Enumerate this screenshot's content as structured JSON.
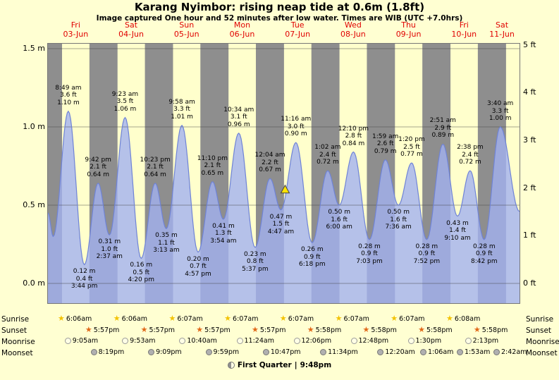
{
  "header": {
    "title": "Karang Nyimbor: rising  neap tide at 0.6m (1.8ft)",
    "subtitle": "Image captured One hour and 52 minutes after low water. Times are WIB (UTC +7.0hrs)"
  },
  "colors": {
    "background": "#ffffd2",
    "day_band": "#ffffcc",
    "night_band": "#8e8e8e",
    "tide_fill": "#a3b1f0",
    "tide_stroke": "#6f83d6",
    "day_label_red": "#e00000",
    "marker_fill": "#ffe400",
    "sunrise_star": "#f2c200",
    "sunset_star": "#e06818"
  },
  "chart_data": {
    "type": "area",
    "title": "Karang Nyimbor: rising  neap tide at 0.6m (1.8ft)",
    "x_unit": "hours from 03-Jun 00:00 WIB",
    "xlim_hours": [
      0,
      204
    ],
    "ylim_m": [
      0,
      1.5
    ],
    "ylim_ft": [
      0,
      5
    ],
    "grid": true,
    "days": [
      {
        "name": "Fri",
        "date": "03-Jun"
      },
      {
        "name": "Sat",
        "date": "04-Jun"
      },
      {
        "name": "Sun",
        "date": "05-Jun"
      },
      {
        "name": "Mon",
        "date": "06-Jun"
      },
      {
        "name": "Tue",
        "date": "07-Jun"
      },
      {
        "name": "Wed",
        "date": "08-Jun"
      },
      {
        "name": "Thu",
        "date": "09-Jun"
      },
      {
        "name": "Fri",
        "date": "10-Jun"
      },
      {
        "name": "Sat",
        "date": "11-Jun"
      }
    ],
    "y_axis": {
      "meters": [
        {
          "label": "0.0 m",
          "value": 0
        },
        {
          "label": "0.5 m",
          "value": 0.5
        },
        {
          "label": "1.0 m",
          "value": 1
        },
        {
          "label": "1.5 m",
          "value": 1.5
        }
      ],
      "feet": [
        {
          "label": "0 ft",
          "value": 0
        },
        {
          "label": "1 ft",
          "value": 1
        },
        {
          "label": "2 ft",
          "value": 2
        },
        {
          "label": "3 ft",
          "value": 3
        },
        {
          "label": "4 ft",
          "value": 4
        },
        {
          "label": "5 ft",
          "value": 5
        }
      ]
    },
    "tide_events": [
      {
        "day": 0,
        "type": "high",
        "time": "8:49 am",
        "height_ft": "3.6 ft",
        "height_m": "1.10 m"
      },
      {
        "day": 0,
        "type": "low",
        "time": "3:44 pm",
        "height_ft": "0.4 ft",
        "height_m": "0.12 m"
      },
      {
        "day": 0,
        "type": "high",
        "time": "9:42 pm",
        "height_ft": "2.1 ft",
        "height_m": "0.64 m"
      },
      {
        "day": 1,
        "type": "low",
        "time": "2:37 am",
        "height_ft": "1.0 ft",
        "height_m": "0.31 m"
      },
      {
        "day": 1,
        "type": "high",
        "time": "9:23 am",
        "height_ft": "3.5 ft",
        "height_m": "1.06 m"
      },
      {
        "day": 1,
        "type": "low",
        "time": "4:20 pm",
        "height_ft": "0.5 ft",
        "height_m": "0.16 m"
      },
      {
        "day": 1,
        "type": "high",
        "time": "10:23 pm",
        "height_ft": "2.1 ft",
        "height_m": "0.64 m"
      },
      {
        "day": 2,
        "type": "low",
        "time": "3:13 am",
        "height_ft": "1.1 ft",
        "height_m": "0.35 m"
      },
      {
        "day": 2,
        "type": "high",
        "time": "9:58 am",
        "height_ft": "3.3 ft",
        "height_m": "1.01 m"
      },
      {
        "day": 2,
        "type": "low",
        "time": "4:57 pm",
        "height_ft": "0.7 ft",
        "height_m": "0.20 m"
      },
      {
        "day": 2,
        "type": "high",
        "time": "11:10 pm",
        "height_ft": "2.1 ft",
        "height_m": "0.65 m"
      },
      {
        "day": 3,
        "type": "low",
        "time": "3:54 am",
        "height_ft": "1.3 ft",
        "height_m": "0.41 m"
      },
      {
        "day": 3,
        "type": "high",
        "time": "10:34 am",
        "height_ft": "3.1 ft",
        "height_m": "0.96 m"
      },
      {
        "day": 3,
        "type": "low",
        "time": "5:37 pm",
        "height_ft": "0.8 ft",
        "height_m": "0.23 m"
      },
      {
        "day": 4,
        "type": "high",
        "time": "12:04 am",
        "height_ft": "2.2 ft",
        "height_m": "0.67 m"
      },
      {
        "day": 4,
        "type": "low",
        "time": "4:47 am",
        "height_ft": "1.5 ft",
        "height_m": "0.47 m"
      },
      {
        "day": 4,
        "type": "high",
        "time": "11:16 am",
        "height_ft": "3.0 ft",
        "height_m": "0.90 m"
      },
      {
        "day": 4,
        "type": "low",
        "time": "6:18 pm",
        "height_ft": "0.9 ft",
        "height_m": "0.26 m"
      },
      {
        "day": 5,
        "type": "high",
        "time": "1:02 am",
        "height_ft": "2.4 ft",
        "height_m": "0.72 m"
      },
      {
        "day": 5,
        "type": "low",
        "time": "6:00 am",
        "height_ft": "1.6 ft",
        "height_m": "0.50 m"
      },
      {
        "day": 5,
        "type": "high",
        "time": "12:10 pm",
        "height_ft": "2.8 ft",
        "height_m": "0.84 m"
      },
      {
        "day": 5,
        "type": "low",
        "time": "7:03 pm",
        "height_ft": "0.9 ft",
        "height_m": "0.28 m"
      },
      {
        "day": 6,
        "type": "high",
        "time": "1:59 am",
        "height_ft": "2.6 ft",
        "height_m": "0.79 m"
      },
      {
        "day": 6,
        "type": "low",
        "time": "7:36 am",
        "height_ft": "1.6 ft",
        "height_m": "0.50 m"
      },
      {
        "day": 6,
        "type": "high",
        "time": "1:20 pm",
        "height_ft": "2.5 ft",
        "height_m": "0.77 m"
      },
      {
        "day": 6,
        "type": "low",
        "time": "7:52 pm",
        "height_ft": "0.9 ft",
        "height_m": "0.28 m"
      },
      {
        "day": 7,
        "type": "high",
        "time": "2:51 am",
        "height_ft": "2.9 ft",
        "height_m": "0.89 m"
      },
      {
        "day": 7,
        "type": "low",
        "time": "9:10 am",
        "height_ft": "1.4 ft",
        "height_m": "0.43 m"
      },
      {
        "day": 7,
        "type": "high",
        "time": "2:38 pm",
        "height_ft": "2.4 ft",
        "height_m": "0.72 m"
      },
      {
        "day": 7,
        "type": "low",
        "time": "8:42 pm",
        "height_ft": "0.9 ft",
        "height_m": "0.28 m"
      },
      {
        "day": 8,
        "type": "high",
        "time": "3:40 am",
        "height_ft": "3.3 ft",
        "height_m": "1.00 m"
      }
    ],
    "curve_edge_points": {
      "start": [
        {
          "t": 0,
          "m": 0.45
        },
        {
          "t": 2.3,
          "m": 0.3
        }
      ],
      "end": [
        {
          "t": 204,
          "m": 0.46
        }
      ]
    },
    "current_time_marker": {
      "t_hours": 102.6,
      "height_m": 0.6
    }
  },
  "astronomy": {
    "sunrise": {
      "label": "Sunrise",
      "events": [
        {
          "day": 0,
          "time": "6:06am"
        },
        {
          "day": 1,
          "time": "6:06am"
        },
        {
          "day": 2,
          "time": "6:07am"
        },
        {
          "day": 3,
          "time": "6:07am"
        },
        {
          "day": 4,
          "time": "6:07am"
        },
        {
          "day": 5,
          "time": "6:07am"
        },
        {
          "day": 6,
          "time": "6:07am"
        },
        {
          "day": 7,
          "time": "6:08am"
        }
      ]
    },
    "sunset": {
      "label": "Sunset",
      "events": [
        {
          "day": 0,
          "time": "5:57pm"
        },
        {
          "day": 1,
          "time": "5:57pm"
        },
        {
          "day": 2,
          "time": "5:57pm"
        },
        {
          "day": 3,
          "time": "5:57pm"
        },
        {
          "day": 4,
          "time": "5:58pm"
        },
        {
          "day": 5,
          "time": "5:58pm"
        },
        {
          "day": 6,
          "time": "5:58pm"
        },
        {
          "day": 7,
          "time": "5:58pm"
        }
      ]
    },
    "moonrise": {
      "label": "Moonrise",
      "events": [
        {
          "day": 0,
          "time": "9:05am"
        },
        {
          "day": 1,
          "time": "9:53am"
        },
        {
          "day": 2,
          "time": "10:40am"
        },
        {
          "day": 3,
          "time": "11:24am"
        },
        {
          "day": 4,
          "time": "12:06pm"
        },
        {
          "day": 5,
          "time": "12:48pm"
        },
        {
          "day": 6,
          "time": "1:30pm"
        },
        {
          "day": 7,
          "time": "2:13pm"
        }
      ]
    },
    "moonset": {
      "label": "Moonset",
      "events": [
        {
          "day": 0,
          "time": "8:19pm"
        },
        {
          "day": 1,
          "time": "9:09pm"
        },
        {
          "day": 2,
          "time": "9:59pm"
        },
        {
          "day": 3,
          "time": "10:47pm"
        },
        {
          "day": 4,
          "time": "11:34pm"
        },
        {
          "day": 6,
          "time": "12:20am"
        },
        {
          "day": 7,
          "time": "1:06am"
        },
        {
          "day": 8,
          "time": "1:53am"
        },
        {
          "day": 9,
          "time": "2:42am"
        }
      ]
    },
    "phase": {
      "name": "First Quarter",
      "separator": "|",
      "time": "9:48pm"
    }
  }
}
